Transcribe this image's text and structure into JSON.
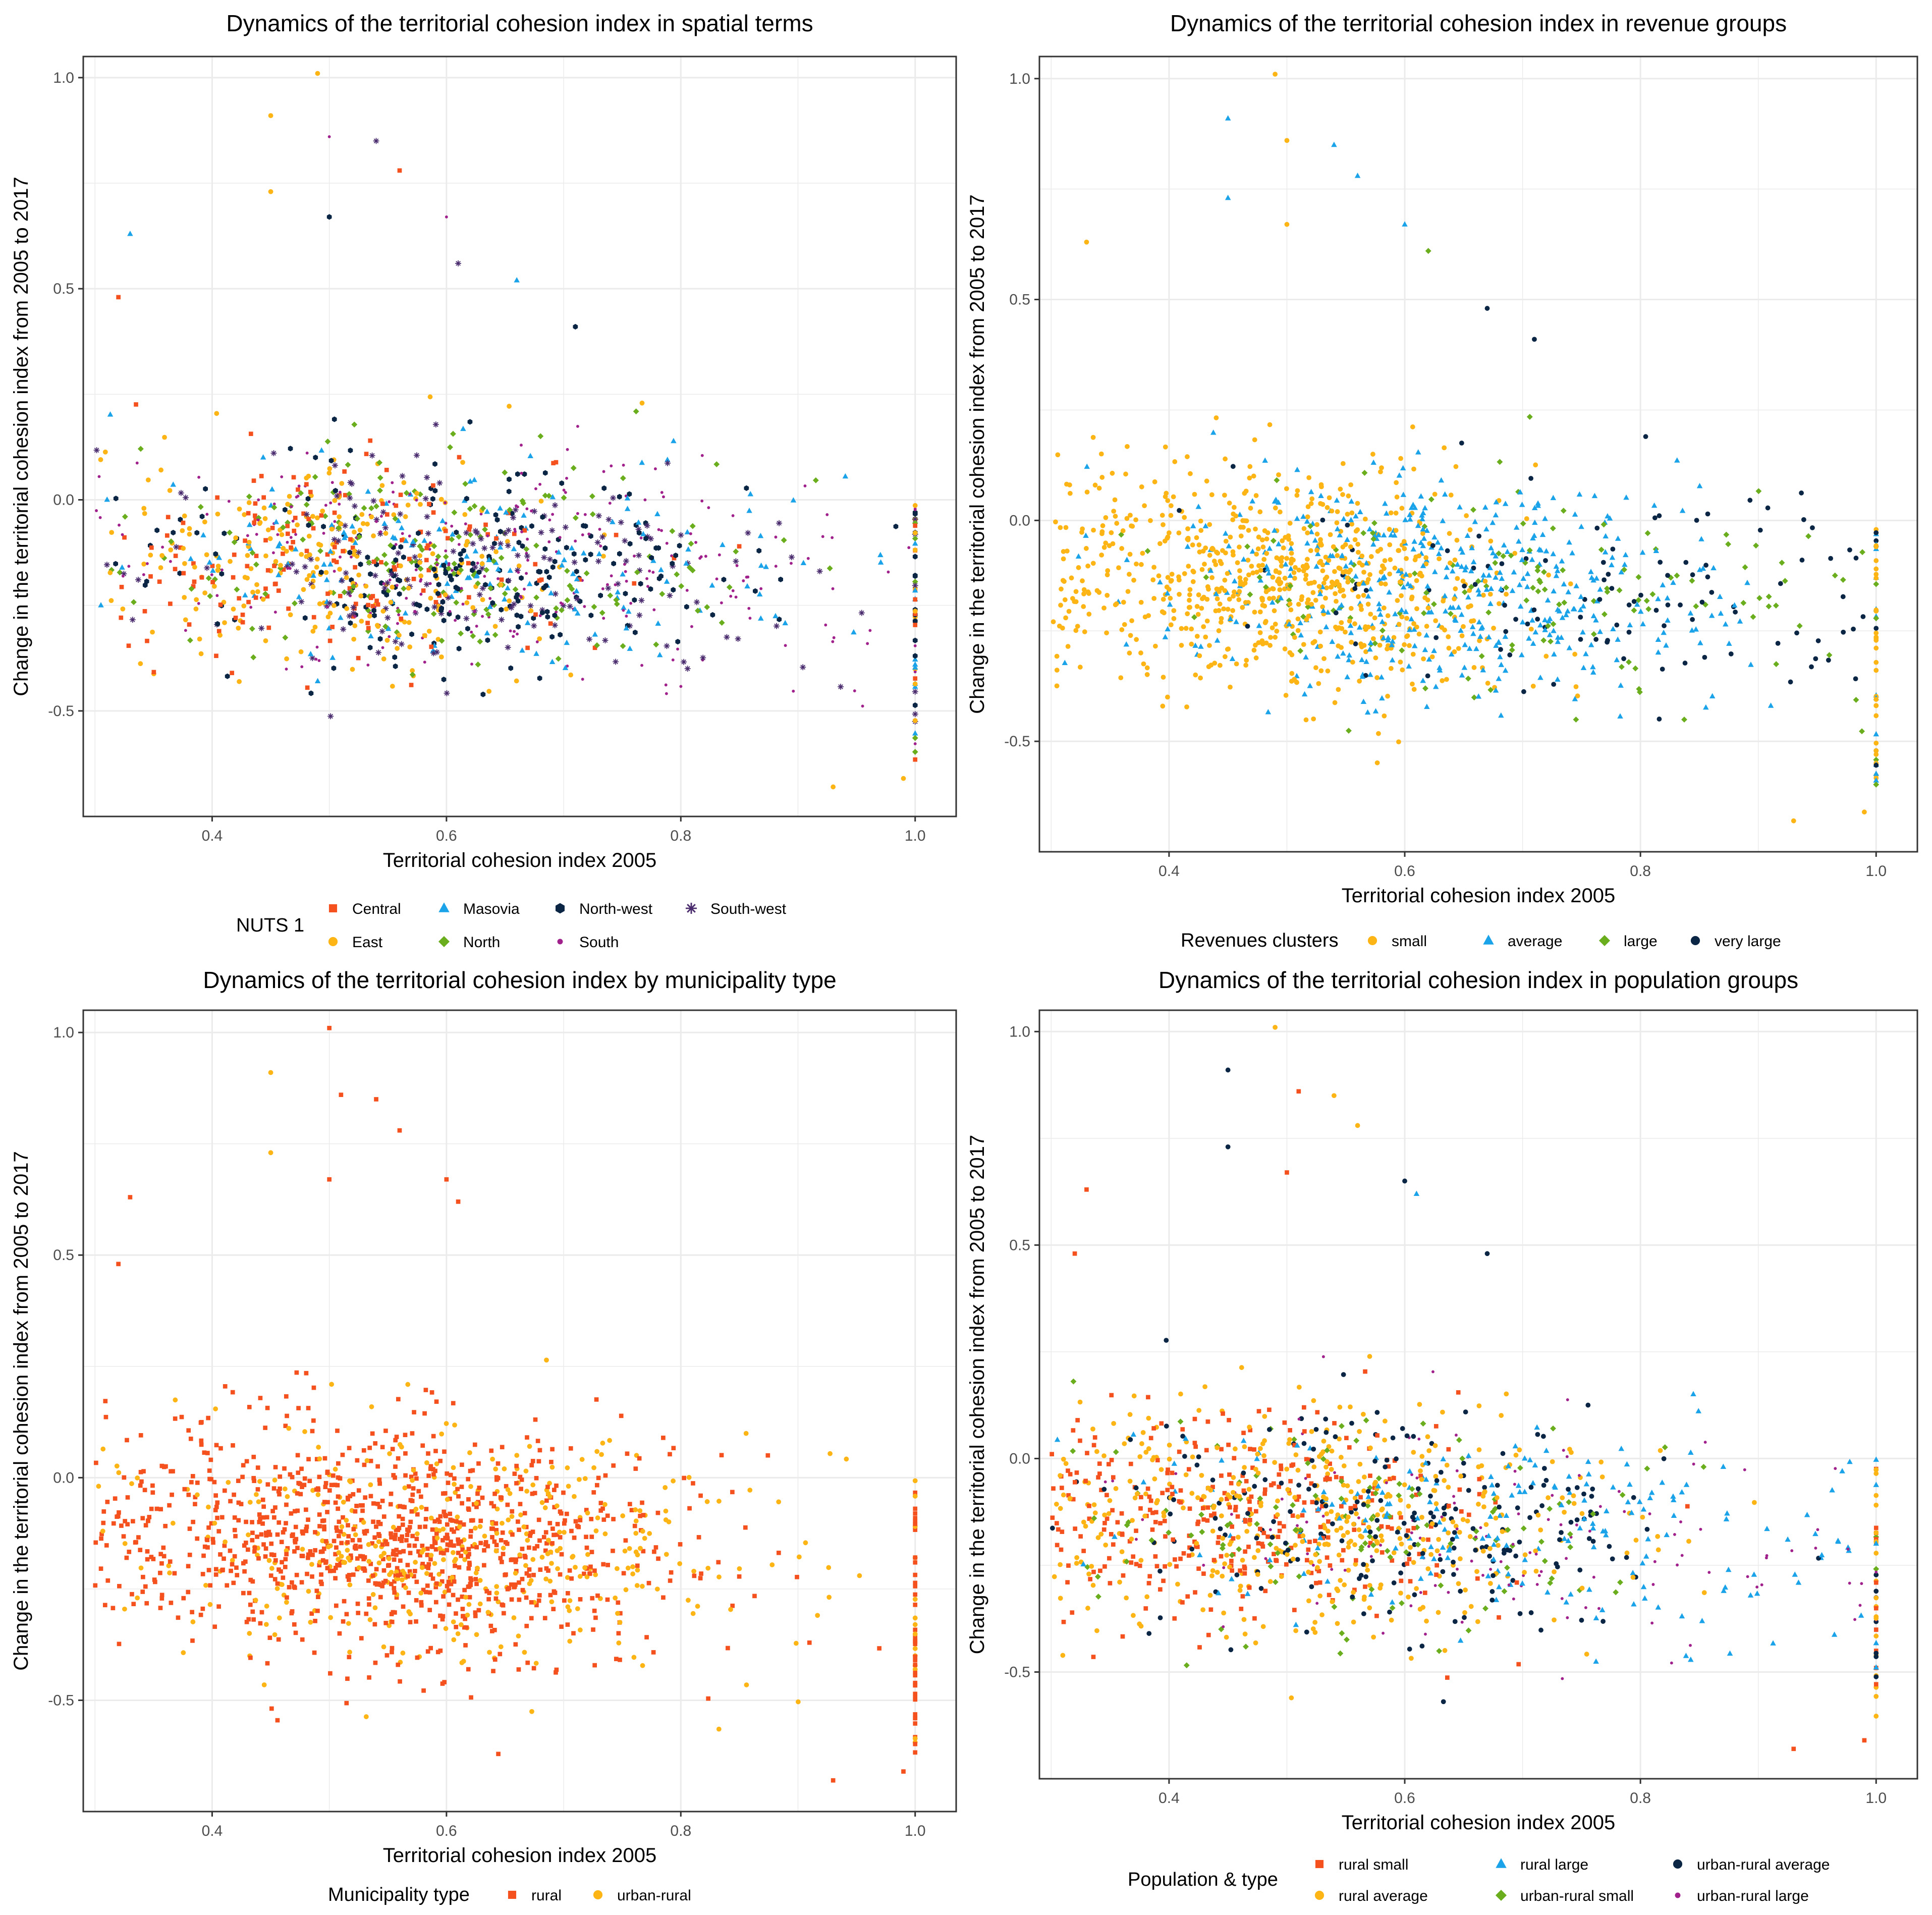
{
  "figure": {
    "panels": [
      "spatial",
      "revenue",
      "municipality",
      "population"
    ]
  },
  "chart_data": [
    {
      "id": "spatial",
      "type": "scatter",
      "title": "Dynamics of the territorial cohesion index in spatial terms",
      "xlabel": "Territorial cohesion index 2005",
      "ylabel": "Change in the territorial cohesion index from 2005 to 2017",
      "xlim": [
        0.29,
        1.035
      ],
      "ylim": [
        -0.75,
        1.05
      ],
      "xticks": [
        0.4,
        0.6,
        0.8,
        1.0
      ],
      "xtick_labels": [
        "0.4",
        "0.6",
        "0.8",
        "1.0"
      ],
      "yticks": [
        -0.5,
        0.0,
        0.5,
        1.0
      ],
      "ytick_labels": [
        "-0.5",
        "0.0",
        "0.5",
        "1.0"
      ],
      "legend_title": "NUTS 1",
      "legend_rows": 2,
      "n_points": 1500,
      "series": [
        {
          "name": "Central",
          "color": "#F4511E",
          "shape": "square",
          "weight": 0.13,
          "xmean": 0.51,
          "xsd": 0.1
        },
        {
          "name": "East",
          "color": "#FDB515",
          "shape": "circle",
          "weight": 0.17,
          "xmean": 0.5,
          "xsd": 0.1
        },
        {
          "name": "Masovia",
          "color": "#1AA3E8",
          "shape": "triangle",
          "weight": 0.12,
          "xmean": 0.62,
          "xsd": 0.15
        },
        {
          "name": "North",
          "color": "#6AAE1E",
          "shape": "diamond",
          "weight": 0.13,
          "xmean": 0.6,
          "xsd": 0.12
        },
        {
          "name": "North-west",
          "color": "#0B2545",
          "shape": "hexagon",
          "weight": 0.17,
          "xmean": 0.62,
          "xsd": 0.13
        },
        {
          "name": "South",
          "color": "#A0208C",
          "shape": "dot",
          "weight": 0.17,
          "xmean": 0.64,
          "xsd": 0.15
        },
        {
          "name": "South-west",
          "color": "#4A2C6E",
          "shape": "asterisk",
          "weight": 0.11,
          "xmean": 0.63,
          "xsd": 0.14
        }
      ],
      "highlight_points": [
        {
          "series": 1,
          "x": 0.49,
          "y": 1.01
        },
        {
          "series": 1,
          "x": 0.45,
          "y": 0.91
        },
        {
          "series": 5,
          "x": 0.5,
          "y": 0.86
        },
        {
          "series": 6,
          "x": 0.54,
          "y": 0.85
        },
        {
          "series": 0,
          "x": 0.56,
          "y": 0.78
        },
        {
          "series": 1,
          "x": 0.45,
          "y": 0.73
        },
        {
          "series": 4,
          "x": 0.5,
          "y": 0.67
        },
        {
          "series": 5,
          "x": 0.6,
          "y": 0.67
        },
        {
          "series": 2,
          "x": 0.33,
          "y": 0.63
        },
        {
          "series": 6,
          "x": 0.61,
          "y": 0.56
        },
        {
          "series": 0,
          "x": 0.32,
          "y": 0.48
        },
        {
          "series": 4,
          "x": 0.71,
          "y": 0.41
        },
        {
          "series": 2,
          "x": 0.66,
          "y": 0.52
        },
        {
          "series": 1,
          "x": 0.99,
          "y": -0.66
        },
        {
          "series": 1,
          "x": 0.93,
          "y": -0.68
        }
      ]
    },
    {
      "id": "revenue",
      "type": "scatter",
      "title": "Dynamics of the territorial cohesion index in revenue groups",
      "xlabel": "Territorial cohesion index 2005",
      "ylabel": "Change in the territorial cohesion index from 2005 to 2017",
      "xlim": [
        0.29,
        1.035
      ],
      "ylim": [
        -0.75,
        1.05
      ],
      "xticks": [
        0.4,
        0.6,
        0.8,
        1.0
      ],
      "xtick_labels": [
        "0.4",
        "0.6",
        "0.8",
        "1.0"
      ],
      "yticks": [
        -0.5,
        0.0,
        0.5,
        1.0
      ],
      "ytick_labels": [
        "-0.5",
        "0.0",
        "0.5",
        "1.0"
      ],
      "legend_title": "Revenues clusters",
      "legend_rows": 1,
      "n_points": 1500,
      "series": [
        {
          "name": "small",
          "color": "#FDB515",
          "shape": "circle",
          "weight": 0.52,
          "xmean": 0.5,
          "xsd": 0.1
        },
        {
          "name": "average",
          "color": "#1AA3E8",
          "shape": "triangle",
          "weight": 0.32,
          "xmean": 0.63,
          "xsd": 0.12
        },
        {
          "name": "large",
          "color": "#6AAE1E",
          "shape": "diamond",
          "weight": 0.08,
          "xmean": 0.7,
          "xsd": 0.14
        },
        {
          "name": "very large",
          "color": "#0B2545",
          "shape": "circle",
          "weight": 0.08,
          "xmean": 0.78,
          "xsd": 0.14
        }
      ],
      "highlight_points": [
        {
          "series": 0,
          "x": 0.49,
          "y": 1.01
        },
        {
          "series": 1,
          "x": 0.45,
          "y": 0.91
        },
        {
          "series": 0,
          "x": 0.5,
          "y": 0.86
        },
        {
          "series": 1,
          "x": 0.54,
          "y": 0.85
        },
        {
          "series": 1,
          "x": 0.56,
          "y": 0.78
        },
        {
          "series": 1,
          "x": 0.45,
          "y": 0.73
        },
        {
          "series": 0,
          "x": 0.5,
          "y": 0.67
        },
        {
          "series": 1,
          "x": 0.6,
          "y": 0.67
        },
        {
          "series": 0,
          "x": 0.33,
          "y": 0.63
        },
        {
          "series": 2,
          "x": 0.62,
          "y": 0.61
        },
        {
          "series": 3,
          "x": 0.71,
          "y": 0.41
        },
        {
          "series": 3,
          "x": 0.67,
          "y": 0.48
        },
        {
          "series": 0,
          "x": 0.99,
          "y": -0.66
        },
        {
          "series": 0,
          "x": 0.93,
          "y": -0.68
        }
      ]
    },
    {
      "id": "municipality",
      "type": "scatter",
      "title": "Dynamics of the territorial cohesion index by municipality type",
      "xlabel": "Territorial cohesion index 2005",
      "ylabel": "Change in the territorial cohesion index from 2005 to 2017",
      "xlim": [
        0.29,
        1.035
      ],
      "ylim": [
        -0.75,
        1.05
      ],
      "xticks": [
        0.4,
        0.6,
        0.8,
        1.0
      ],
      "xtick_labels": [
        "0.4",
        "0.6",
        "0.8",
        "1.0"
      ],
      "yticks": [
        -0.5,
        0.0,
        0.5,
        1.0
      ],
      "ytick_labels": [
        "-0.5",
        "0.0",
        "0.5",
        "1.0"
      ],
      "legend_title": "Municipality type",
      "legend_rows": 1,
      "n_points": 1500,
      "series": [
        {
          "name": "rural",
          "color": "#F4511E",
          "shape": "square",
          "weight": 0.72,
          "xmean": 0.55,
          "xsd": 0.13
        },
        {
          "name": "urban-rural",
          "color": "#FDB515",
          "shape": "circle",
          "weight": 0.28,
          "xmean": 0.6,
          "xsd": 0.14
        }
      ],
      "highlight_points": [
        {
          "series": 0,
          "x": 0.5,
          "y": 1.01
        },
        {
          "series": 1,
          "x": 0.45,
          "y": 0.91
        },
        {
          "series": 0,
          "x": 0.51,
          "y": 0.86
        },
        {
          "series": 0,
          "x": 0.54,
          "y": 0.85
        },
        {
          "series": 0,
          "x": 0.56,
          "y": 0.78
        },
        {
          "series": 1,
          "x": 0.45,
          "y": 0.73
        },
        {
          "series": 0,
          "x": 0.5,
          "y": 0.67
        },
        {
          "series": 0,
          "x": 0.6,
          "y": 0.67
        },
        {
          "series": 0,
          "x": 0.33,
          "y": 0.63
        },
        {
          "series": 0,
          "x": 0.61,
          "y": 0.62
        },
        {
          "series": 0,
          "x": 0.32,
          "y": 0.48
        },
        {
          "series": 0,
          "x": 0.99,
          "y": -0.66
        },
        {
          "series": 0,
          "x": 0.93,
          "y": -0.68
        }
      ]
    },
    {
      "id": "population",
      "type": "scatter",
      "title": "Dynamics of the territorial cohesion index in population groups",
      "xlabel": "Territorial cohesion index 2005",
      "ylabel": "Change in the territorial cohesion index from 2005 to 2017",
      "xlim": [
        0.29,
        1.035
      ],
      "ylim": [
        -0.75,
        1.05
      ],
      "xticks": [
        0.4,
        0.6,
        0.8,
        1.0
      ],
      "xtick_labels": [
        "0.4",
        "0.6",
        "0.8",
        "1.0"
      ],
      "yticks": [
        -0.5,
        0.0,
        0.5,
        1.0
      ],
      "ytick_labels": [
        "-0.5",
        "0.0",
        "0.5",
        "1.0"
      ],
      "legend_title": "Population & type",
      "legend_rows": 2,
      "n_points": 1500,
      "series": [
        {
          "name": "rural small",
          "color": "#F4511E",
          "shape": "square",
          "weight": 0.22,
          "xmean": 0.46,
          "xsd": 0.1
        },
        {
          "name": "rural average",
          "color": "#FDB515",
          "shape": "circle",
          "weight": 0.32,
          "xmean": 0.53,
          "xsd": 0.12
        },
        {
          "name": "rural large",
          "color": "#1AA3E8",
          "shape": "triangle",
          "weight": 0.14,
          "xmean": 0.7,
          "xsd": 0.15
        },
        {
          "name": "urban-rural small",
          "color": "#6AAE1E",
          "shape": "diamond",
          "weight": 0.08,
          "xmean": 0.55,
          "xsd": 0.12
        },
        {
          "name": "urban-rural average",
          "color": "#0B2545",
          "shape": "circle",
          "weight": 0.14,
          "xmean": 0.6,
          "xsd": 0.12
        },
        {
          "name": "urban-rural large",
          "color": "#A0208C",
          "shape": "dot",
          "weight": 0.1,
          "xmean": 0.7,
          "xsd": 0.15
        }
      ],
      "highlight_points": [
        {
          "series": 1,
          "x": 0.49,
          "y": 1.01
        },
        {
          "series": 4,
          "x": 0.45,
          "y": 0.91
        },
        {
          "series": 0,
          "x": 0.51,
          "y": 0.86
        },
        {
          "series": 1,
          "x": 0.54,
          "y": 0.85
        },
        {
          "series": 1,
          "x": 0.56,
          "y": 0.78
        },
        {
          "series": 4,
          "x": 0.45,
          "y": 0.73
        },
        {
          "series": 0,
          "x": 0.5,
          "y": 0.67
        },
        {
          "series": 4,
          "x": 0.6,
          "y": 0.65
        },
        {
          "series": 0,
          "x": 0.33,
          "y": 0.63
        },
        {
          "series": 2,
          "x": 0.61,
          "y": 0.62
        },
        {
          "series": 0,
          "x": 0.32,
          "y": 0.48
        },
        {
          "series": 4,
          "x": 0.67,
          "y": 0.48
        },
        {
          "series": 0,
          "x": 0.99,
          "y": -0.66
        },
        {
          "series": 0,
          "x": 0.93,
          "y": -0.68
        }
      ]
    }
  ]
}
